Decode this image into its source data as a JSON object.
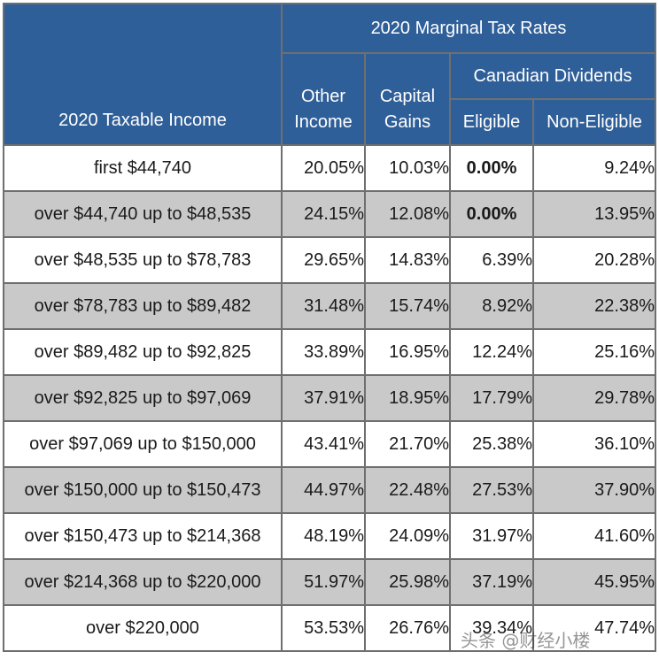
{
  "header": {
    "title": "2020 Marginal Tax Rates",
    "income_label": "2020 Taxable Income",
    "other_income": "Other\nIncome",
    "capital_gains": "Capital\nGains",
    "canadian_dividends": "Canadian Dividends",
    "eligible": "Eligible",
    "non_eligible": "Non-Eligible"
  },
  "rows": [
    {
      "income": "first $44,740",
      "other": "20.05%",
      "capital": "10.03%",
      "eligible": "0.00%",
      "non_eligible": "9.24%"
    },
    {
      "income": "over $44,740 up to $48,535",
      "other": "24.15%",
      "capital": "12.08%",
      "eligible": "0.00%",
      "non_eligible": "13.95%"
    },
    {
      "income": "over $48,535 up to $78,783",
      "other": "29.65%",
      "capital": "14.83%",
      "eligible": "6.39%",
      "non_eligible": "20.28%"
    },
    {
      "income": "over $78,783 up to $89,482",
      "other": "31.48%",
      "capital": "15.74%",
      "eligible": "8.92%",
      "non_eligible": "22.38%"
    },
    {
      "income": "over $89,482 up to $92,825",
      "other": "33.89%",
      "capital": "16.95%",
      "eligible": "12.24%",
      "non_eligible": "25.16%"
    },
    {
      "income": "over $92,825 up to $97,069",
      "other": "37.91%",
      "capital": "18.95%",
      "eligible": "17.79%",
      "non_eligible": "29.78%"
    },
    {
      "income": "over $97,069 up to $150,000",
      "other": "43.41%",
      "capital": "21.70%",
      "eligible": "25.38%",
      "non_eligible": "36.10%"
    },
    {
      "income": "over $150,000 up to $150,473",
      "other": "44.97%",
      "capital": "22.48%",
      "eligible": "27.53%",
      "non_eligible": "37.90%"
    },
    {
      "income": "over $150,473 up to $214,368",
      "other": "48.19%",
      "capital": "24.09%",
      "eligible": "31.97%",
      "non_eligible": "41.60%"
    },
    {
      "income": "over $214,368 up to $220,000",
      "other": "51.97%",
      "capital": "25.98%",
      "eligible": "37.19%",
      "non_eligible": "45.95%"
    },
    {
      "income": "over $220,000",
      "other": "53.53%",
      "capital": "26.76%",
      "eligible": "39.34%",
      "non_eligible": "47.74%"
    }
  ],
  "watermark": "头条 @财经小楼"
}
